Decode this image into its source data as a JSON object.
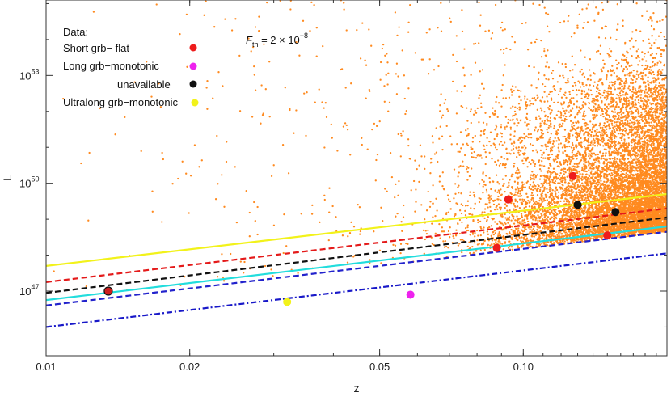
{
  "chart_data": {
    "type": "scatter",
    "xlabel": "z",
    "ylabel": "L",
    "xscale": "log",
    "yscale": "log",
    "xlim": [
      0.01,
      0.2
    ],
    "ylim_log10": [
      45.2,
      55.1
    ],
    "x_ticks": [
      0.01,
      0.02,
      0.05,
      0.1
    ],
    "x_tick_labels": [
      "0.01",
      "0.02",
      "0.05",
      "0.10"
    ],
    "y_ticks": [
      {
        "value_log10": 47,
        "base": "10",
        "exp": "47"
      },
      {
        "value_log10": 50,
        "base": "10",
        "exp": "50"
      },
      {
        "value_log10": 53,
        "base": "10",
        "exp": "53"
      }
    ],
    "grid": false,
    "annotation": {
      "symbol": "F",
      "sub": "th",
      "text": " = 2 × 10",
      "exp": "−8"
    },
    "legend": {
      "placement": "top-left",
      "title": "Data:",
      "entries": [
        {
          "label": "Short grb− flat",
          "color": "#ee1c1c"
        },
        {
          "label": "Long grb−monotonic",
          "color": "#ee22ee"
        },
        {
          "label": "unavailable",
          "color": "#111111"
        },
        {
          "label": "Ultralong grb−monotonic",
          "color": "#f2f21a"
        }
      ]
    },
    "data_points": [
      {
        "z": 0.0135,
        "logL": 47.0,
        "color": "#cc1f1f",
        "edge": "#111111"
      },
      {
        "z": 0.093,
        "logL": 49.55,
        "color": "#ee1c1c"
      },
      {
        "z": 0.088,
        "logL": 48.2,
        "color": "#ee1c1c"
      },
      {
        "z": 0.127,
        "logL": 50.2,
        "color": "#ee1c1c"
      },
      {
        "z": 0.15,
        "logL": 48.55,
        "color": "#ee1c1c"
      },
      {
        "z": 0.13,
        "logL": 49.4,
        "color": "#111111"
      },
      {
        "z": 0.156,
        "logL": 49.2,
        "color": "#111111"
      },
      {
        "z": 0.058,
        "logL": 46.9,
        "color": "#ee22ee"
      },
      {
        "z": 0.032,
        "logL": 46.7,
        "color": "#f2f21a"
      }
    ],
    "threshold_lines": [
      {
        "color": "#f2f21a",
        "style": "solid",
        "logL_at_x_min": 47.7,
        "logL_at_x_max": 49.7
      },
      {
        "color": "#e41a1a",
        "style": "dashed",
        "logL_at_x_min": 47.25,
        "logL_at_x_max": 49.3
      },
      {
        "color": "#111111",
        "style": "dashed",
        "logL_at_x_min": 46.95,
        "logL_at_x_max": 49.05
      },
      {
        "color": "#22dddd",
        "style": "solid",
        "logL_at_x_min": 46.75,
        "logL_at_x_max": 48.8
      },
      {
        "color": "#2222cc",
        "style": "dashed",
        "logL_at_x_min": 46.6,
        "logL_at_x_max": 48.65
      },
      {
        "color": "#1818c8",
        "style": "dash-dot",
        "logL_at_x_min": 46.0,
        "logL_at_x_max": 48.05
      }
    ],
    "simulated_population": {
      "color": "#ff8a1f",
      "count_dense": 9000,
      "count_sparse": 650,
      "floor_logL_at_x_min": 46.6,
      "floor_logL_at_x_max": 48.65,
      "description_ref": "orange scatter of simulated events"
    }
  }
}
